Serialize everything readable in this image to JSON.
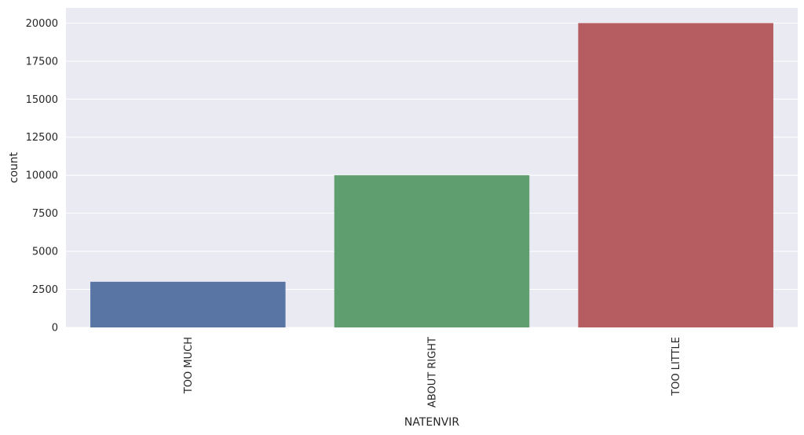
{
  "chart_data": {
    "type": "bar",
    "categories": [
      "TOO MUCH",
      "ABOUT RIGHT",
      "TOO LITTLE"
    ],
    "values": [
      3000,
      10000,
      20000
    ],
    "colors": [
      "#5875a4",
      "#5f9e6e",
      "#b55d60"
    ],
    "xlabel": "NATENVIR",
    "ylabel": "count",
    "ylim": [
      0,
      21000
    ],
    "yticks": [
      0,
      2500,
      5000,
      7500,
      10000,
      12500,
      15000,
      17500,
      20000
    ],
    "grid": true,
    "background_color": "#eaeaf2",
    "grid_color": "#ffffff"
  }
}
